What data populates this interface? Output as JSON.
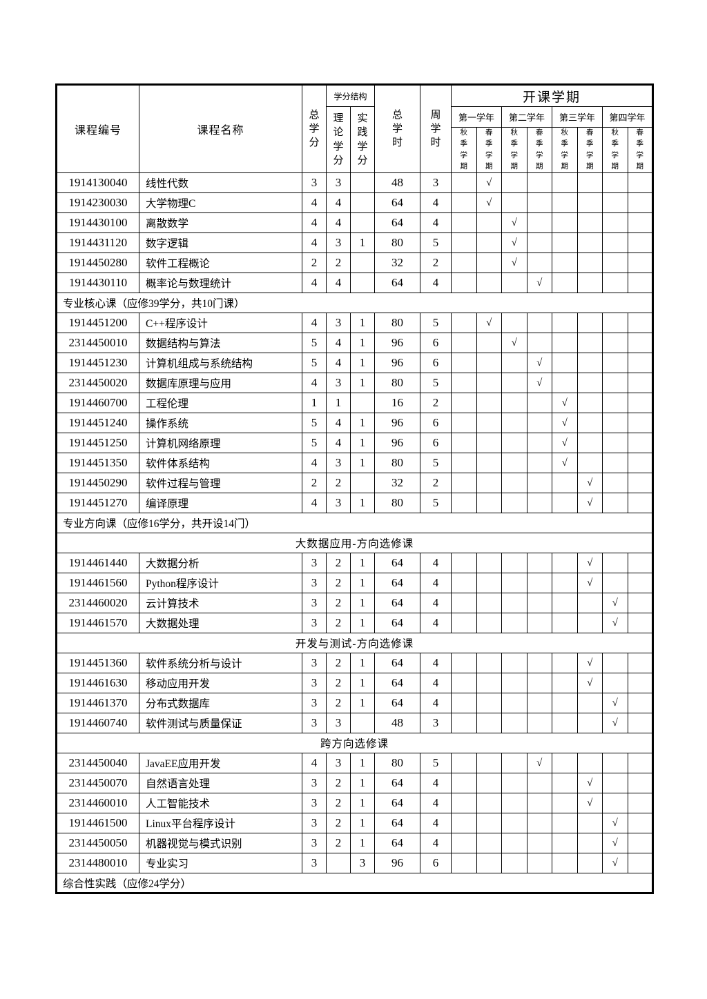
{
  "page": {
    "background_color": "#ffffff",
    "text_color": "#000000",
    "border_color": "#000000",
    "check_mark": "√"
  },
  "header": {
    "course_id": "课程编号",
    "course_name": "课程名称",
    "total_credits": "总学分",
    "credit_structure": "学分结构",
    "theory_credits": "理论学分",
    "practice_credits": "实践学分",
    "total_hours": "总学时",
    "weekly_hours": "周学时",
    "semesters_title": "开课学期",
    "years": [
      "第一学年",
      "第二学年",
      "第三学年",
      "第四学年"
    ],
    "fall": "秋季学期",
    "spring": "春季学期"
  },
  "rows": [
    {
      "type": "course",
      "id": "1914130040",
      "name": "线性代数",
      "credits": "3",
      "theory": "3",
      "practice": "",
      "hours": "48",
      "weekly": "3",
      "semester": 2
    },
    {
      "type": "course",
      "id": "1914230030",
      "name": "大学物理C",
      "credits": "4",
      "theory": "4",
      "practice": "",
      "hours": "64",
      "weekly": "4",
      "semester": 2
    },
    {
      "type": "course",
      "id": "1914430100",
      "name": "离散数学",
      "credits": "4",
      "theory": "4",
      "practice": "",
      "hours": "64",
      "weekly": "4",
      "semester": 3
    },
    {
      "type": "course",
      "id": "1914431120",
      "name": "数字逻辑",
      "credits": "4",
      "theory": "3",
      "practice": "1",
      "hours": "80",
      "weekly": "5",
      "semester": 3
    },
    {
      "type": "course",
      "id": "1914450280",
      "name": "软件工程概论",
      "credits": "2",
      "theory": "2",
      "practice": "",
      "hours": "32",
      "weekly": "2",
      "semester": 3
    },
    {
      "type": "course",
      "id": "1914430110",
      "name": "概率论与数理统计",
      "credits": "4",
      "theory": "4",
      "practice": "",
      "hours": "64",
      "weekly": "4",
      "semester": 4
    },
    {
      "type": "section",
      "label": "专业核心课（应修39学分，共10门课）"
    },
    {
      "type": "course",
      "id": "1914451200",
      "name": "C++程序设计",
      "credits": "4",
      "theory": "3",
      "practice": "1",
      "hours": "80",
      "weekly": "5",
      "semester": 2
    },
    {
      "type": "course",
      "id": "2314450010",
      "name": "数据结构与算法",
      "credits": "5",
      "theory": "4",
      "practice": "1",
      "hours": "96",
      "weekly": "6",
      "semester": 3
    },
    {
      "type": "course",
      "id": "1914451230",
      "name": "计算机组成与系统结构",
      "credits": "5",
      "theory": "4",
      "practice": "1",
      "hours": "96",
      "weekly": "6",
      "semester": 4
    },
    {
      "type": "course",
      "id": "2314450020",
      "name": "数据库原理与应用",
      "credits": "4",
      "theory": "3",
      "practice": "1",
      "hours": "80",
      "weekly": "5",
      "semester": 4
    },
    {
      "type": "course",
      "id": "1914460700",
      "name": "工程伦理",
      "credits": "1",
      "theory": "1",
      "practice": "",
      "hours": "16",
      "weekly": "2",
      "semester": 5
    },
    {
      "type": "course",
      "id": "1914451240",
      "name": "操作系统",
      "credits": "5",
      "theory": "4",
      "practice": "1",
      "hours": "96",
      "weekly": "6",
      "semester": 5
    },
    {
      "type": "course",
      "id": "1914451250",
      "name": "计算机网络原理",
      "credits": "5",
      "theory": "4",
      "practice": "1",
      "hours": "96",
      "weekly": "6",
      "semester": 5
    },
    {
      "type": "course",
      "id": "1914451350",
      "name": "软件体系结构",
      "credits": "4",
      "theory": "3",
      "practice": "1",
      "hours": "80",
      "weekly": "5",
      "semester": 5
    },
    {
      "type": "course",
      "id": "1914450290",
      "name": "软件过程与管理",
      "credits": "2",
      "theory": "2",
      "practice": "",
      "hours": "32",
      "weekly": "2",
      "semester": 6
    },
    {
      "type": "course",
      "id": "1914451270",
      "name": "编译原理",
      "credits": "4",
      "theory": "3",
      "practice": "1",
      "hours": "80",
      "weekly": "5",
      "semester": 6
    },
    {
      "type": "section",
      "label": "专业方向课（应修16学分，共开设14门）"
    },
    {
      "type": "subsection",
      "label": "大数据应用-方向选修课"
    },
    {
      "type": "course",
      "id": "1914461440",
      "name": "大数据分析",
      "credits": "3",
      "theory": "2",
      "practice": "1",
      "hours": "64",
      "weekly": "4",
      "semester": 6
    },
    {
      "type": "course",
      "id": "1914461560",
      "name": "Python程序设计",
      "credits": "3",
      "theory": "2",
      "practice": "1",
      "hours": "64",
      "weekly": "4",
      "semester": 6
    },
    {
      "type": "course",
      "id": "2314460020",
      "name": "云计算技术",
      "credits": "3",
      "theory": "2",
      "practice": "1",
      "hours": "64",
      "weekly": "4",
      "semester": 7
    },
    {
      "type": "course",
      "id": "1914461570",
      "name": "大数据处理",
      "credits": "3",
      "theory": "2",
      "practice": "1",
      "hours": "64",
      "weekly": "4",
      "semester": 7
    },
    {
      "type": "subsection",
      "label": "开发与测试-方向选修课"
    },
    {
      "type": "course",
      "id": "1914451360",
      "name": "软件系统分析与设计",
      "credits": "3",
      "theory": "2",
      "practice": "1",
      "hours": "64",
      "weekly": "4",
      "semester": 6
    },
    {
      "type": "course",
      "id": "1914461630",
      "name": "移动应用开发",
      "credits": "3",
      "theory": "2",
      "practice": "1",
      "hours": "64",
      "weekly": "4",
      "semester": 6
    },
    {
      "type": "course",
      "id": "1914461370",
      "name": "分布式数据库",
      "credits": "3",
      "theory": "2",
      "practice": "1",
      "hours": "64",
      "weekly": "4",
      "semester": 7
    },
    {
      "type": "course",
      "id": "1914460740",
      "name": "软件测试与质量保证",
      "credits": "3",
      "theory": "3",
      "practice": "",
      "hours": "48",
      "weekly": "3",
      "semester": 7
    },
    {
      "type": "subsection",
      "label": "跨方向选修课"
    },
    {
      "type": "course",
      "id": "2314450040",
      "name": "JavaEE应用开发",
      "credits": "4",
      "theory": "3",
      "practice": "1",
      "hours": "80",
      "weekly": "5",
      "semester": 4
    },
    {
      "type": "course",
      "id": "2314450070",
      "name": "自然语言处理",
      "credits": "3",
      "theory": "2",
      "practice": "1",
      "hours": "64",
      "weekly": "4",
      "semester": 6
    },
    {
      "type": "course",
      "id": "2314460010",
      "name": "人工智能技术",
      "credits": "3",
      "theory": "2",
      "practice": "1",
      "hours": "64",
      "weekly": "4",
      "semester": 6
    },
    {
      "type": "course",
      "id": "1914461500",
      "name": "Linux平台程序设计",
      "credits": "3",
      "theory": "2",
      "practice": "1",
      "hours": "64",
      "weekly": "4",
      "semester": 7
    },
    {
      "type": "course",
      "id": "2314450050",
      "name": "机器视觉与模式识别",
      "credits": "3",
      "theory": "2",
      "practice": "1",
      "hours": "64",
      "weekly": "4",
      "semester": 7
    },
    {
      "type": "course",
      "id": "2314480010",
      "name": "专业实习",
      "credits": "3",
      "theory": "",
      "practice": "3",
      "hours": "96",
      "weekly": "6",
      "semester": 7
    },
    {
      "type": "section",
      "label": "综合性实践（应修24学分）"
    }
  ]
}
